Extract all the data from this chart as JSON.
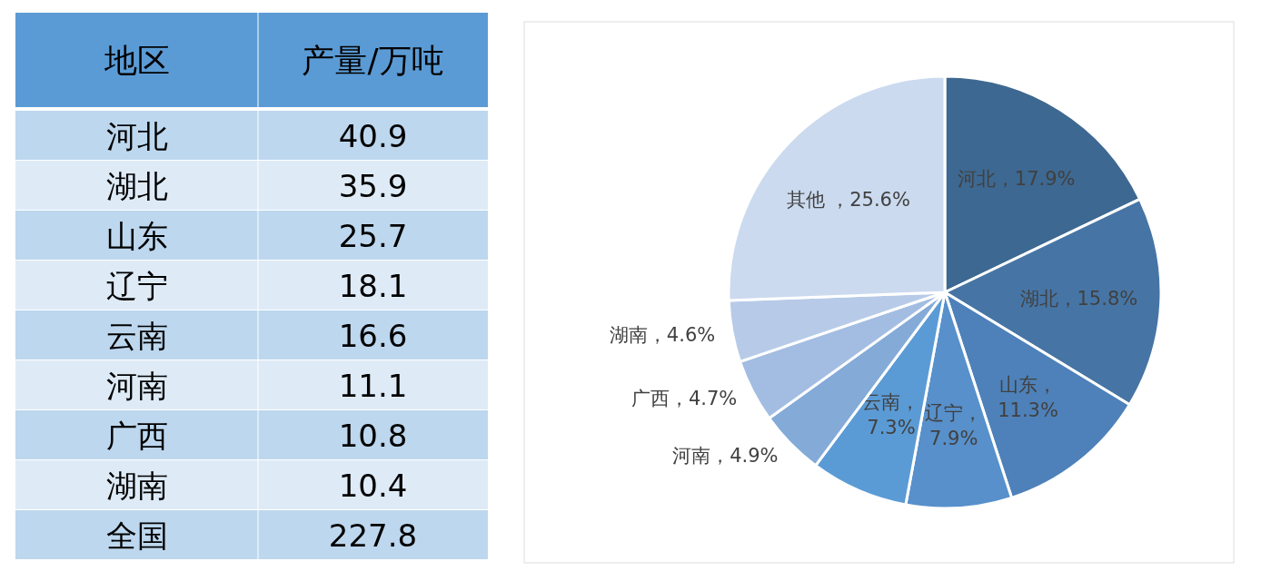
{
  "chart_data": [
    {
      "type": "other",
      "annotations": [
        "地区",
        "产量/万吨"
      ],
      "categories": [
        "河北",
        "湖北",
        "山东",
        "辽宁",
        "云南",
        "河南",
        "广西",
        "湖南",
        "全国"
      ],
      "values": [
        40.9,
        35.9,
        25.7,
        18.1,
        16.6,
        11.1,
        10.8,
        10.4,
        227.8
      ],
      "data_labels": true
    },
    {
      "type": "pie",
      "categories": [
        "河北",
        "湖北",
        "山东",
        "辽宁",
        "云南",
        "河南",
        "广西",
        "湖南",
        "其他"
      ],
      "values": [
        17.9,
        15.8,
        11.3,
        7.9,
        7.3,
        4.9,
        4.7,
        4.6,
        25.6
      ],
      "value_labels": [
        "，17.9%",
        "，15.8%",
        "，11.3%",
        "，7.9%",
        "，7.3%",
        "，4.9%",
        "，4.7%",
        "，4.6%",
        " ，25.6%"
      ],
      "colors": [
        "#3d6891",
        "#4675a5",
        "#4e81b9",
        "#5790cb",
        "#5b9bd5",
        "#84aad8",
        "#a3bde2",
        "#b7cbe8",
        "#cbdaee"
      ]
    }
  ]
}
